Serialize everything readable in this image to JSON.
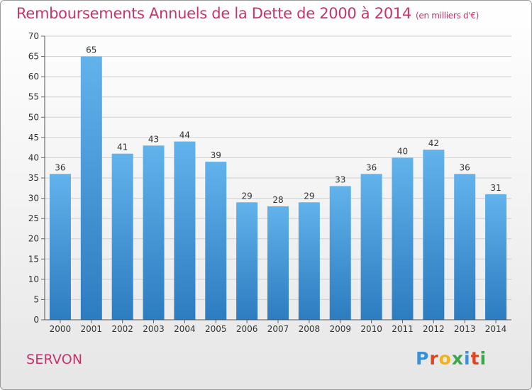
{
  "header": {
    "title": "Remboursements Annuels de la Dette de 2000 à 2014",
    "subtitle": "(en milliers d'€)"
  },
  "footer": {
    "town": "SERVON",
    "logo_letters": [
      "P",
      "r",
      "o",
      "x",
      "i",
      "t",
      "i"
    ],
    "logo_colors": [
      "#3a8fd6",
      "#e2431f",
      "#f0b418",
      "#3aa84a",
      "#3a8fd6",
      "#e2431f",
      "#3aa84a"
    ]
  },
  "colors": {
    "accent": "#c8336c",
    "bar_top": "#62b2ec",
    "bar_bottom": "#2c7cc0"
  },
  "chart_data": {
    "type": "bar",
    "title": "Remboursements Annuels de la Dette de 2000 à 2014",
    "ylabel": "en milliers d'€",
    "xlabel": "",
    "categories": [
      "2000",
      "2001",
      "2002",
      "2003",
      "2004",
      "2005",
      "2006",
      "2007",
      "2008",
      "2009",
      "2010",
      "2011",
      "2012",
      "2013",
      "2014"
    ],
    "values": [
      36,
      65,
      41,
      43,
      44,
      39,
      29,
      28,
      29,
      33,
      36,
      40,
      42,
      36,
      31
    ],
    "ylim": [
      0,
      70
    ],
    "yticks": [
      0,
      5,
      10,
      15,
      20,
      25,
      30,
      35,
      40,
      45,
      50,
      55,
      60,
      65,
      70
    ],
    "grid": true
  }
}
